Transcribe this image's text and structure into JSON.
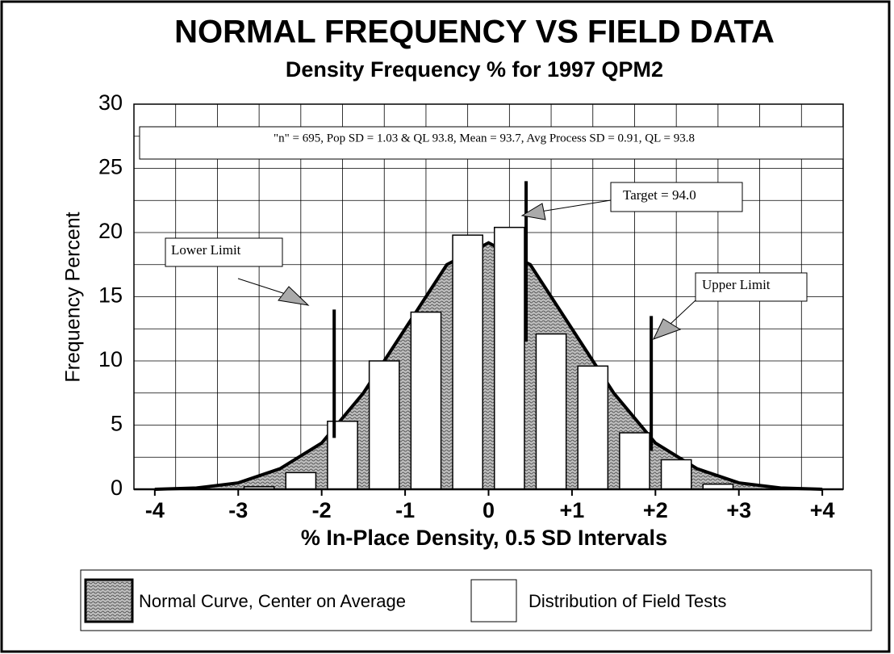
{
  "chart_data": {
    "type": "histogram",
    "title": "NORMAL FREQUENCY VS FIELD DATA",
    "subtitle": "Density Frequency %  for 1997 QPM2",
    "x_label": "% In-Place Density, 0.5 SD Intervals",
    "y_label": "Frequency Percent",
    "info": "\"n\" = 695, Pop SD = 1.03 & QL 93.8, Mean  = 93.7, Avg Process SD = 0.91, QL = 93.8",
    "xlim": [
      -4.25,
      4.25
    ],
    "ylim": [
      0,
      30
    ],
    "xticks": [
      -4,
      -3,
      -2,
      -1,
      0,
      {
        "value": 1,
        "label": "+1"
      },
      {
        "value": 2,
        "label": "+2"
      },
      {
        "value": 3,
        "label": "+3"
      },
      {
        "value": 4,
        "label": "+4"
      }
    ],
    "yticks": [
      0,
      5,
      10,
      15,
      20,
      25,
      30
    ],
    "xgrid": [
      -3.75,
      -3.25,
      -2.75,
      -2.25,
      -1.75,
      -1.25,
      -0.75,
      -0.25,
      0.25,
      0.75,
      1.25,
      1.75,
      2.25,
      2.75,
      3.25,
      3.75
    ],
    "ygrid": [
      2.5,
      7.5,
      12.5,
      17.5,
      22.5,
      27.5
    ],
    "grid": true,
    "curve": {
      "name": "Normal Curve, Center on Average",
      "color": "#555555",
      "x": [
        -4,
        -3.5,
        -3,
        -2.5,
        -2,
        -1.5,
        -1,
        -0.5,
        0,
        0.5,
        1,
        1.5,
        2,
        2.5,
        3,
        3.5,
        4
      ],
      "values": [
        0,
        0.1,
        0.5,
        1.6,
        3.6,
        7.5,
        12.5,
        17.5,
        19.2,
        17.5,
        12.5,
        7.5,
        3.6,
        1.6,
        0.5,
        0.1,
        0
      ]
    },
    "bars": {
      "name": "Distribution of Field Tests",
      "color": "#ffffff",
      "bins": [
        -3,
        -2.5,
        -2,
        -1.5,
        -1,
        -0.5,
        0,
        0.5,
        1,
        1.5,
        2,
        2.5,
        3
      ],
      "values": [
        0.2,
        1.3,
        5.3,
        10.0,
        13.8,
        19.8,
        20.4,
        12.1,
        9.6,
        4.4,
        2.3,
        0.4
      ]
    },
    "limit_lines": [
      {
        "x": -1.85,
        "y": [
          4,
          14
        ]
      },
      {
        "x": 0.45,
        "y": [
          11.5,
          24
        ]
      },
      {
        "x": 1.95,
        "y": [
          3,
          13.5
        ]
      }
    ],
    "annotations": [
      "Lower Limit",
      "Target = 94.0",
      "Upper Limit"
    ]
  }
}
